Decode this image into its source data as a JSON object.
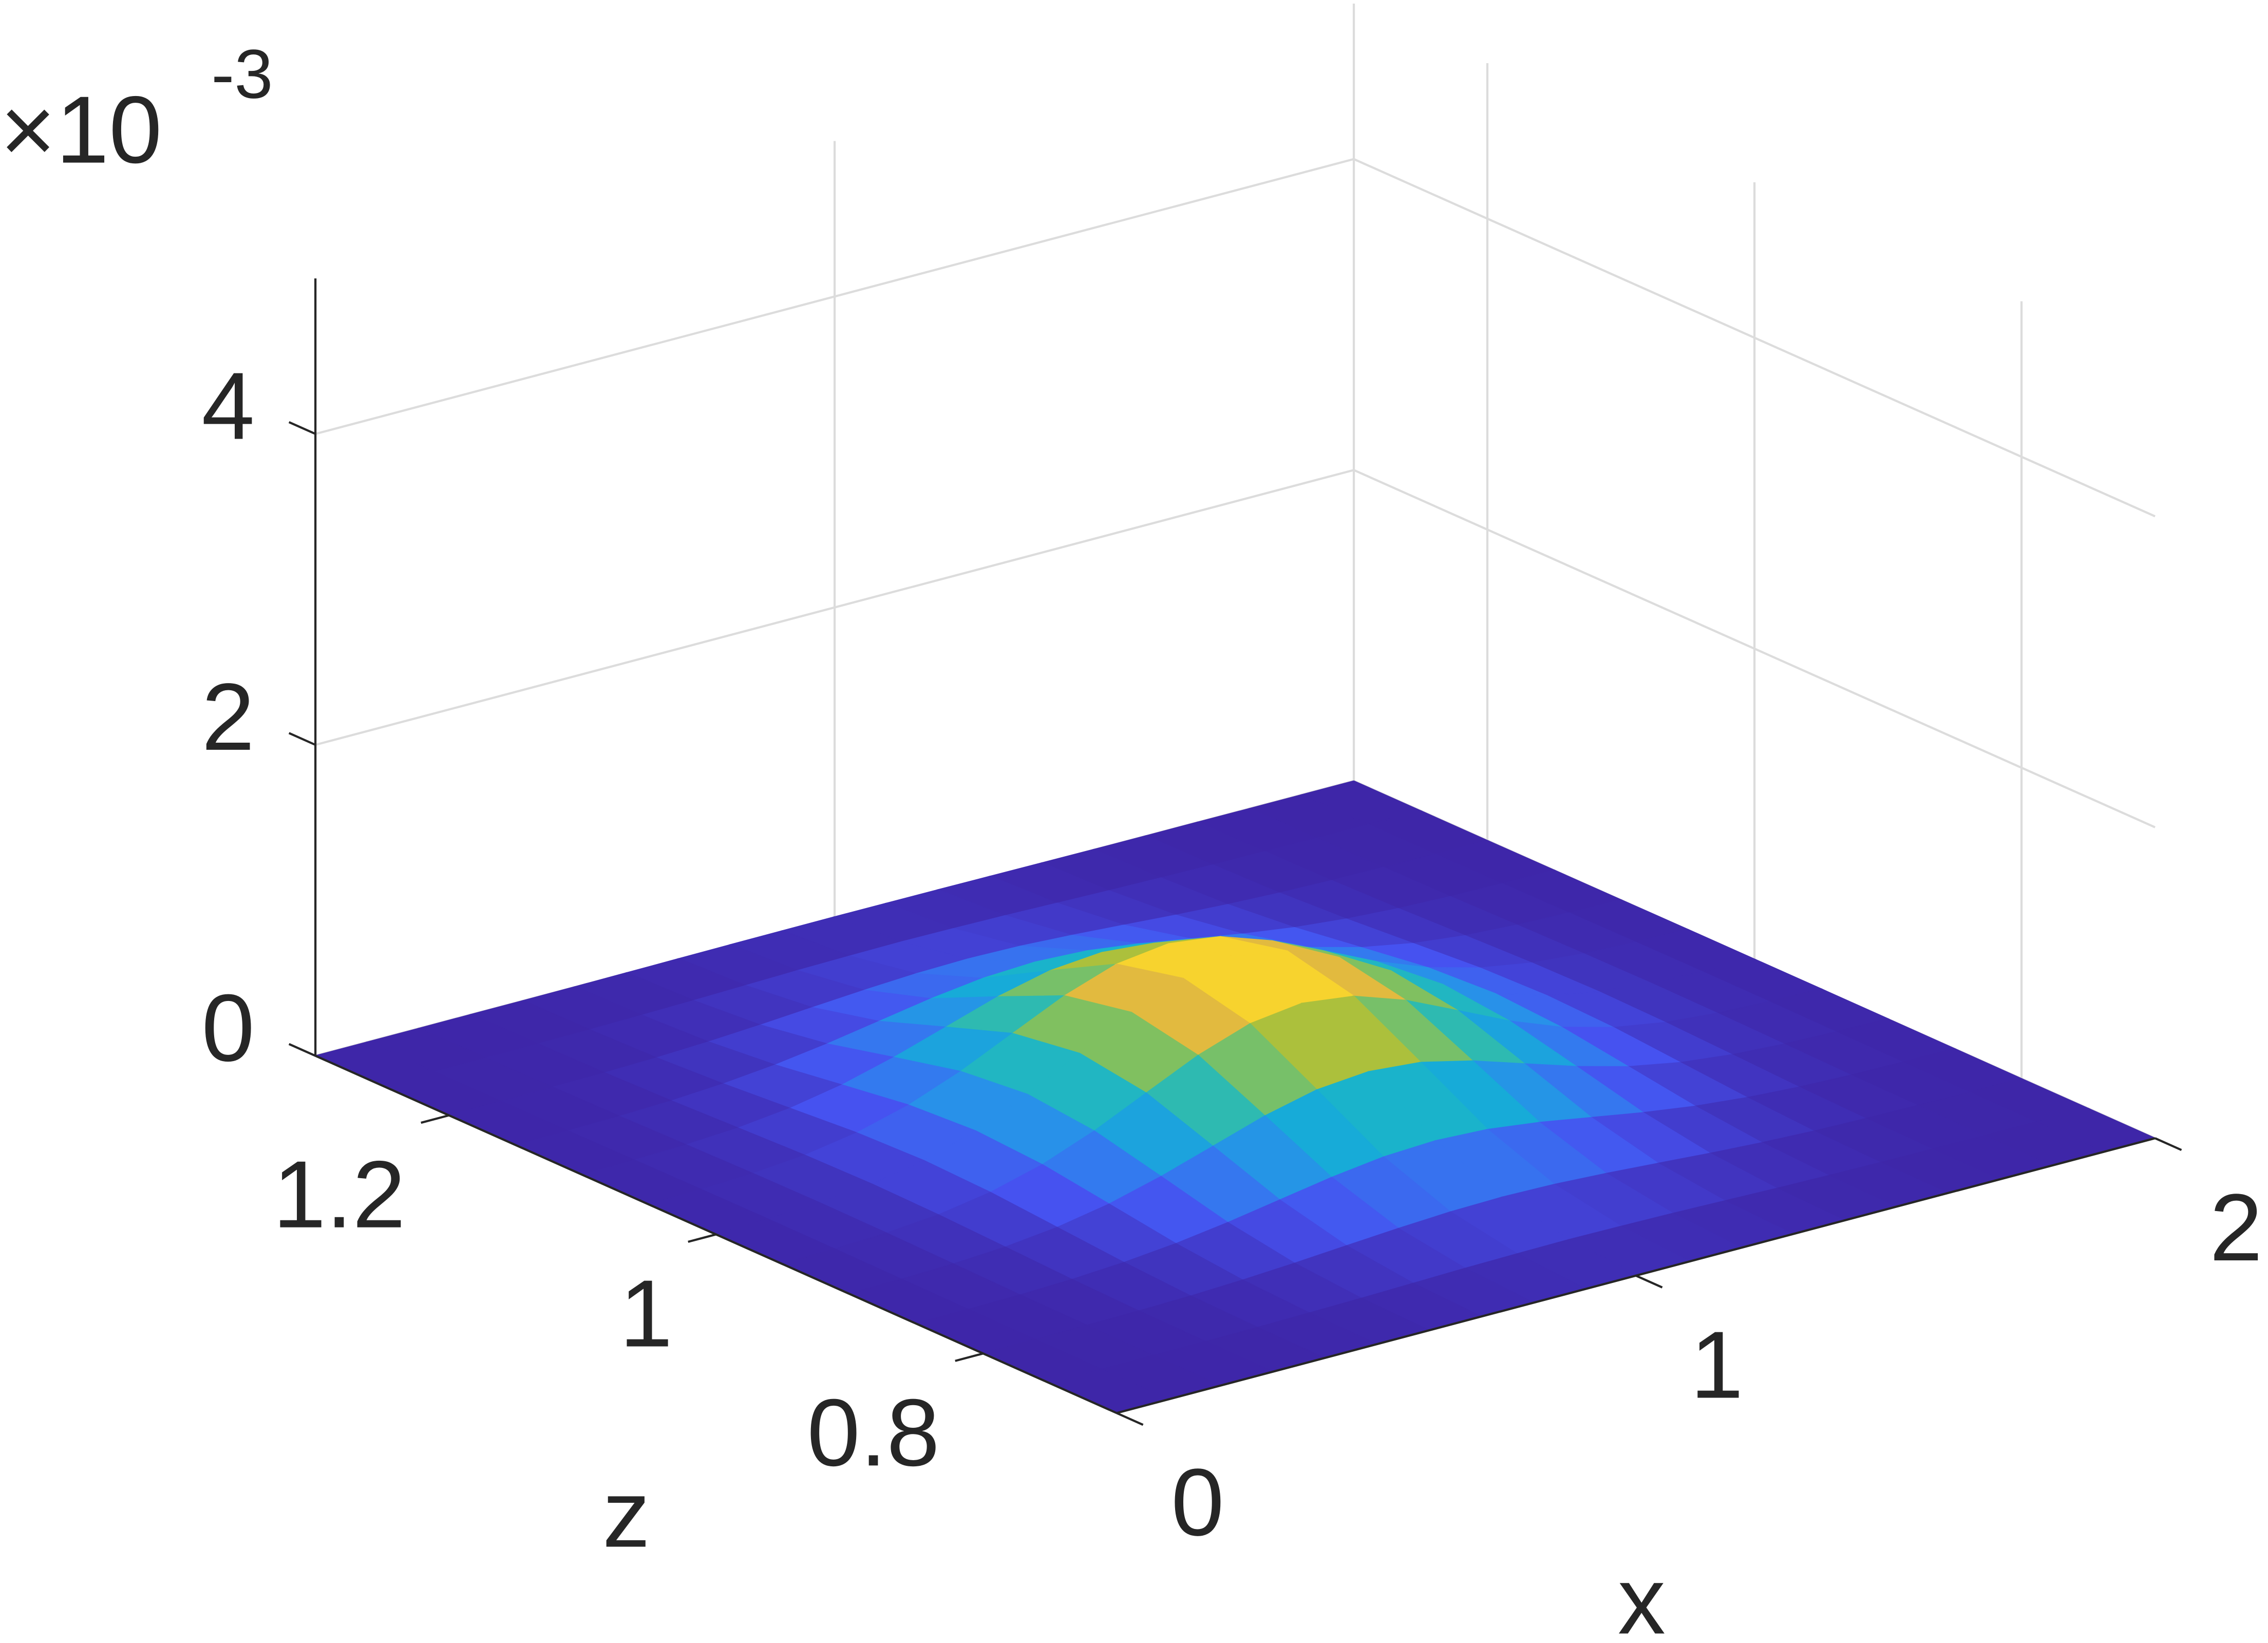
{
  "chart_data": {
    "type": "surface",
    "x": [
      0,
      0.1,
      0.2,
      0.3,
      0.4,
      0.5,
      0.6,
      0.7,
      0.8,
      0.9,
      1,
      1.1,
      1.2,
      1.3,
      1.4,
      1.5,
      1.6,
      1.7,
      1.8,
      1.9,
      2
    ],
    "z": [
      0.7,
      0.75,
      0.8,
      0.85,
      0.9,
      0.95,
      1,
      1.05,
      1.1,
      1.15,
      1.2,
      1.25,
      1.3
    ],
    "values": [
      [
        0,
        0,
        0,
        1e-06,
        1e-06,
        2e-06,
        4e-06,
        6e-06,
        8e-06,
        9e-06,
        1e-05,
        9e-06,
        8e-06,
        6e-06,
        4e-06,
        2e-06,
        1e-06,
        1e-06,
        0,
        0,
        0
      ],
      [
        0,
        0,
        1e-06,
        3e-06,
        5e-06,
        1e-05,
        1.6e-05,
        2.4e-05,
        3.2e-05,
        3.7e-05,
        4e-05,
        3.7e-05,
        3.2e-05,
        2.4e-05,
        1.6e-05,
        1e-05,
        5e-06,
        3e-06,
        1e-06,
        0,
        0
      ],
      [
        0,
        1e-06,
        4e-06,
        8e-06,
        1.6e-05,
        3e-05,
        5e-05,
        7.4e-05,
        9.7e-05,
        0.000115,
        0.000122,
        0.000115,
        9.7e-05,
        7.4e-05,
        5e-05,
        3e-05,
        1.6e-05,
        8e-06,
        4e-06,
        1e-06,
        0
      ],
      [
        1e-06,
        3e-06,
        8e-06,
        1.9e-05,
        4e-05,
        7.3e-05,
        0.00012,
        0.000177,
        0.000234,
        0.000277,
        0.000293,
        0.000277,
        0.000234,
        0.000177,
        0.00012,
        7.3e-05,
        4e-05,
        1.9e-05,
        8e-06,
        3e-06,
        1e-06
      ],
      [
        2e-06,
        6e-06,
        1.6e-05,
        3.6e-05,
        7.4e-05,
        0.000136,
        0.000225,
        0.000331,
        0.000438,
        0.000517,
        0.000546,
        0.000517,
        0.000438,
        0.000331,
        0.000225,
        0.000136,
        7.4e-05,
        3.6e-05,
        1.6e-05,
        6e-06,
        2e-06
      ],
      [
        3e-06,
        9e-06,
        2.3e-05,
        5.2e-05,
        0.000108,
        0.000198,
        0.000326,
        0.000482,
        0.000636,
        0.000751,
        0.000794,
        0.000751,
        0.000636,
        0.000482,
        0.000326,
        0.000198,
        0.000108,
        5.2e-05,
        2.3e-05,
        9e-06,
        3e-06
      ],
      [
        3e-06,
        1e-05,
        2.6e-05,
        5.9e-05,
        0.000122,
        0.000224,
        0.00037,
        0.000546,
        0.000721,
        0.000851,
        0.0009,
        0.000851,
        0.000721,
        0.000546,
        0.00037,
        0.000224,
        0.000122,
        5.9e-05,
        2.6e-05,
        1e-05,
        3e-06
      ],
      [
        3e-06,
        9e-06,
        2.3e-05,
        5.2e-05,
        0.000108,
        0.000198,
        0.000326,
        0.000482,
        0.000636,
        0.000751,
        0.000794,
        0.000751,
        0.000636,
        0.000482,
        0.000326,
        0.000198,
        0.000108,
        5.2e-05,
        2.3e-05,
        9e-06,
        3e-06
      ],
      [
        2e-06,
        6e-06,
        1.6e-05,
        3.6e-05,
        7.4e-05,
        0.000136,
        0.000225,
        0.000331,
        0.000438,
        0.000517,
        0.000546,
        0.000517,
        0.000438,
        0.000331,
        0.000225,
        0.000136,
        7.4e-05,
        3.6e-05,
        1.6e-05,
        6e-06,
        2e-06
      ],
      [
        1e-06,
        3e-06,
        8e-06,
        1.9e-05,
        4e-05,
        7.3e-05,
        0.00012,
        0.000177,
        0.000234,
        0.000277,
        0.000293,
        0.000277,
        0.000234,
        0.000177,
        0.00012,
        7.3e-05,
        4e-05,
        1.9e-05,
        8e-06,
        3e-06,
        1e-06
      ],
      [
        0,
        1e-06,
        4e-06,
        8e-06,
        1.6e-05,
        3e-05,
        5e-05,
        7.4e-05,
        9.7e-05,
        0.000115,
        0.000122,
        0.000115,
        9.7e-05,
        7.4e-05,
        5e-05,
        3e-05,
        1.6e-05,
        8e-06,
        4e-06,
        1e-06,
        0
      ],
      [
        0,
        0,
        1e-06,
        3e-06,
        5e-06,
        1e-05,
        1.6e-05,
        2.4e-05,
        3.2e-05,
        3.7e-05,
        4e-05,
        3.7e-05,
        3.2e-05,
        2.4e-05,
        1.6e-05,
        1e-05,
        5e-06,
        3e-06,
        1e-06,
        0,
        0
      ],
      [
        0,
        0,
        0,
        1e-06,
        1e-06,
        2e-06,
        4e-06,
        6e-06,
        8e-06,
        9e-06,
        1e-05,
        9e-06,
        8e-06,
        6e-06,
        4e-06,
        2e-06,
        1e-06,
        1e-06,
        0,
        0,
        0
      ]
    ],
    "colormap": [
      "#3e26a8",
      "#4652f0",
      "#2c8aee",
      "#13b1d4",
      "#3cbfa0",
      "#a6c13c",
      "#f5b840",
      "#f9fb15"
    ],
    "xlabel": "x",
    "zlabel": "z",
    "xlim": [
      0,
      2
    ],
    "xticks": [
      0,
      1,
      2
    ],
    "zlim": [
      0.7,
      1.3
    ],
    "zticks": [
      0.8,
      1,
      1.2
    ],
    "ylim": [
      0,
      0.005
    ],
    "yticks": [
      0,
      {
        "value": 0.002,
        "label": "2"
      },
      {
        "value": 0.004,
        "label": "4"
      }
    ],
    "y_exponent": {
      "base": "×10",
      "power": "-3"
    },
    "grid": true
  }
}
